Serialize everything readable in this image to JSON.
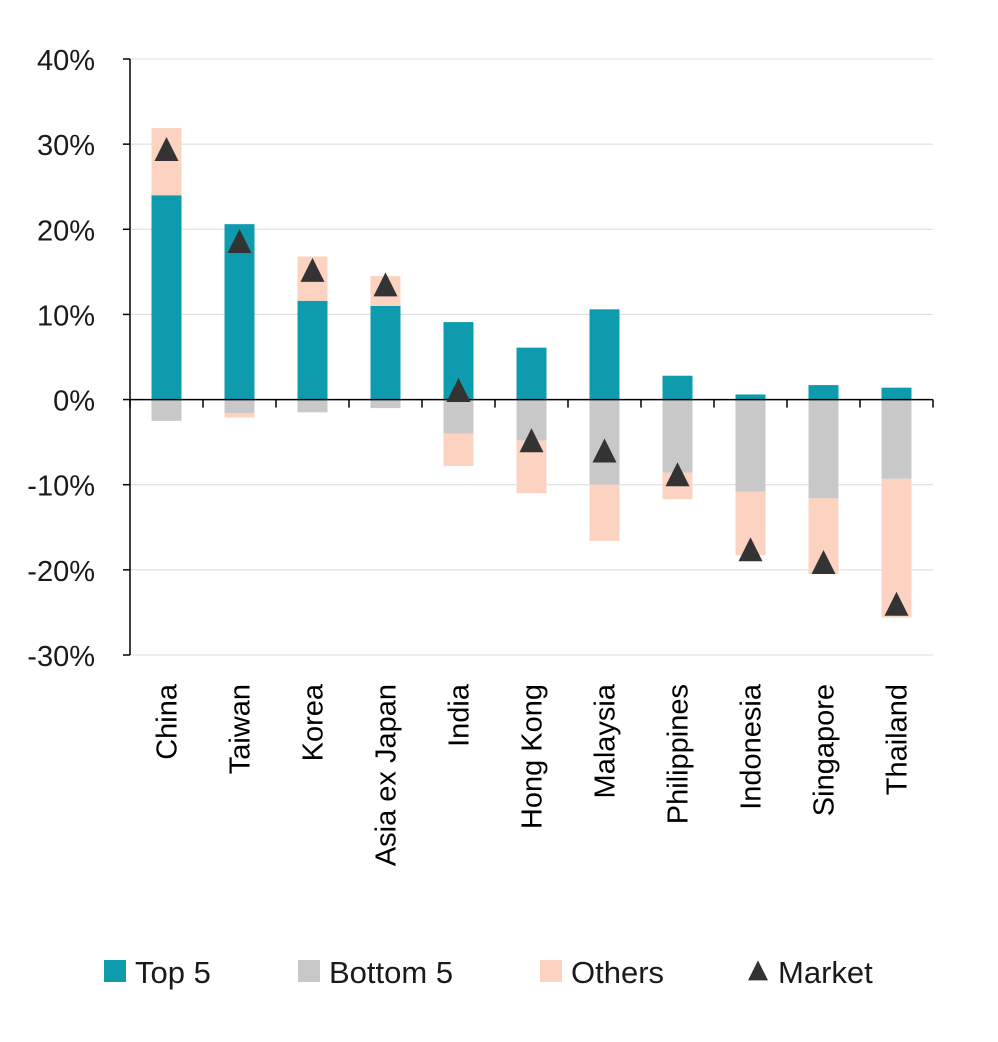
{
  "chart_data": {
    "type": "bar",
    "stacked": true,
    "title": "",
    "xlabel": "",
    "ylabel": "",
    "ylim": [
      -30,
      40
    ],
    "yticks": [
      40,
      30,
      20,
      10,
      0,
      -10,
      -20,
      -30
    ],
    "ytick_labels": [
      "40%",
      "30%",
      "20%",
      "10%",
      "0%",
      "-10%",
      "-20%",
      "-30%"
    ],
    "grid": "horizontal",
    "legend_position": "bottom",
    "categories": [
      "China",
      "Taiwan",
      "Korea",
      "Asia ex Japan",
      "India",
      "Hong Kong",
      "Malaysia",
      "Philippines",
      "Indonesia",
      "Singapore",
      "Thailand"
    ],
    "series": [
      {
        "name": "Top 5",
        "color": "#0E9BAE",
        "values": [
          24.0,
          20.6,
          11.6,
          11.0,
          9.1,
          6.1,
          10.6,
          2.8,
          0.6,
          1.7,
          1.4
        ]
      },
      {
        "name": "Bottom 5",
        "color": "#C8C8C8",
        "values": [
          -2.5,
          -1.6,
          -1.5,
          -1.0,
          -4.0,
          -4.8,
          -10.0,
          -8.6,
          -10.8,
          -11.6,
          -9.3
        ]
      },
      {
        "name": "Others",
        "color": "#FBD3C0",
        "pos_values": [
          7.9,
          0,
          5.2,
          3.5,
          0,
          0,
          0,
          0,
          0,
          0,
          0
        ],
        "neg_values": [
          0,
          -0.5,
          0,
          0,
          -3.8,
          -6.2,
          -6.6,
          -3.1,
          -7.5,
          -8.9,
          -16.3
        ]
      },
      {
        "name": "Market",
        "color": "#333333",
        "marker": "triangle",
        "values": [
          29.2,
          18.4,
          15.0,
          13.3,
          0.9,
          -5.0,
          -6.2,
          -9.0,
          -17.8,
          -19.3,
          -24.2
        ]
      }
    ]
  }
}
